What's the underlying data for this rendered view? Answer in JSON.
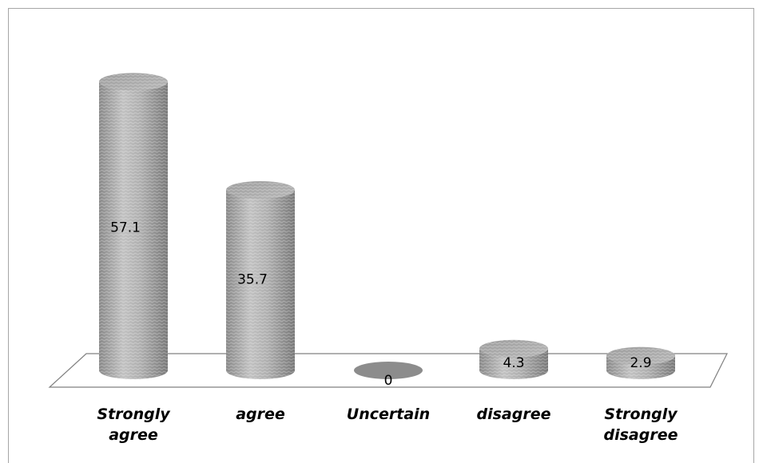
{
  "chart_data": {
    "type": "bar",
    "style": "3d-cylinder",
    "categories": [
      [
        "Strongly",
        "agree"
      ],
      [
        "agree"
      ],
      [
        "Uncertain"
      ],
      [
        "disagree"
      ],
      [
        "Strongly",
        "disagree"
      ]
    ],
    "values": [
      57.1,
      35.7,
      0,
      4.3,
      2.9
    ],
    "value_labels": [
      "57.1",
      "35.7",
      "0",
      "4.3",
      "2.9"
    ],
    "title": "",
    "xlabel": "",
    "ylabel": "",
    "ylim": [
      0,
      60
    ],
    "grid": false,
    "legend": "none",
    "colors": {
      "bar": "#a8a8a8",
      "bar_dark": "#7d7d7d",
      "bar_light": "#d4d4d4",
      "floor": "#808080",
      "frame": "#a6a6a6"
    }
  }
}
